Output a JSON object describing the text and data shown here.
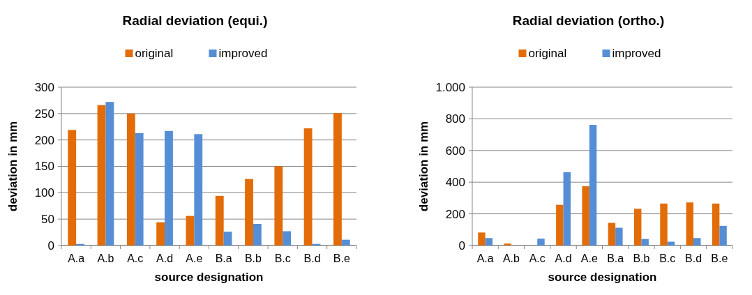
{
  "chart_data": [
    {
      "type": "bar",
      "title": "Radial deviation (equi.)",
      "xlabel": "source designation",
      "ylabel": "deviation in mm",
      "categories": [
        "A.a",
        "A.b",
        "A.c",
        "A.d",
        "A.e",
        "B.a",
        "B.b",
        "B.c",
        "B.d",
        "B.e"
      ],
      "series": [
        {
          "name": "original",
          "color": "#e36c09",
          "values": [
            219,
            266,
            250,
            44,
            56,
            94,
            126,
            150,
            222,
            251
          ]
        },
        {
          "name": "improved",
          "color": "#558ed5",
          "values": [
            3,
            272,
            213,
            217,
            211,
            26,
            41,
            27,
            3,
            11
          ]
        }
      ],
      "ylim": [
        0,
        300
      ],
      "yticks": [
        0,
        50,
        100,
        150,
        200,
        250,
        300
      ],
      "grid": "y",
      "legend": "top"
    },
    {
      "type": "bar",
      "title": "Radial deviation (ortho.)",
      "xlabel": "source designation",
      "ylabel": "deviation in mm",
      "categories": [
        "A.a",
        "A.b",
        "A.c",
        "A.d",
        "A.e",
        "B.a",
        "B.b",
        "B.c",
        "B.d",
        "B.e"
      ],
      "series": [
        {
          "name": "original",
          "color": "#e36c09",
          "values": [
            82,
            12,
            0,
            257,
            374,
            143,
            232,
            265,
            272,
            265
          ]
        },
        {
          "name": "improved",
          "color": "#558ed5",
          "values": [
            47,
            0,
            43,
            463,
            762,
            112,
            41,
            24,
            47,
            124
          ]
        }
      ],
      "ylim": [
        0,
        1000
      ],
      "yticks": [
        0,
        200,
        400,
        600,
        800,
        {
          "value": 1000,
          "label": "1.000"
        }
      ],
      "grid": "y",
      "legend": "top"
    }
  ]
}
